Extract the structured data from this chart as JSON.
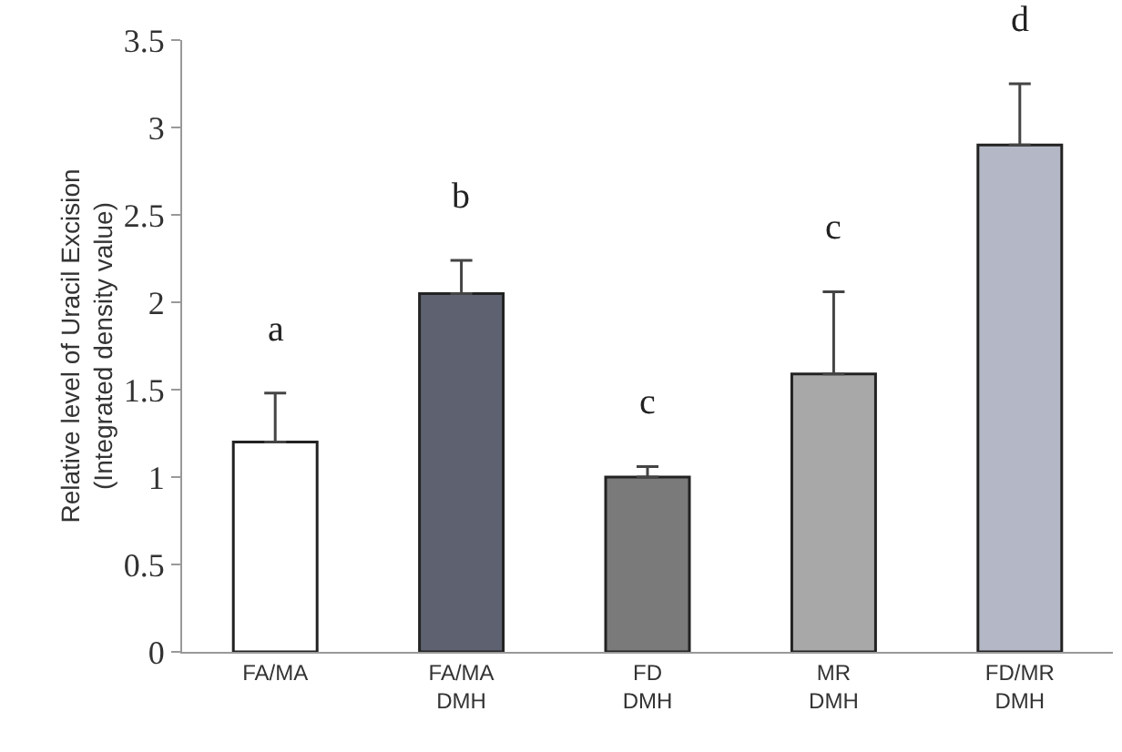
{
  "chart_data": {
    "type": "bar",
    "ylabel": "Relative level of Uracil Excision\n(Integrated density value)",
    "categories": [
      "FA/MA",
      "FA/MA\nDMH",
      "FD\nDMH",
      "MR\nDMH",
      "FD/MR\nDMH"
    ],
    "values": [
      1.2,
      2.05,
      1.0,
      1.59,
      2.9
    ],
    "colors": [
      "#ffffff",
      "#5e6270",
      "#7a7a7a",
      "#a8a8a8",
      "#b4b8c6"
    ],
    "errors": [
      [
        1.2,
        1.48
      ],
      [
        2.05,
        2.24
      ],
      [
        1.0,
        1.06
      ],
      [
        1.59,
        2.06
      ],
      [
        2.9,
        3.25
      ]
    ],
    "ylim": [
      0,
      3.5
    ],
    "yticks": [
      0,
      0.5,
      1,
      1.5,
      2,
      2.5,
      3,
      3.5
    ],
    "annotations": [
      "a",
      "b",
      "c",
      "c",
      "d"
    ]
  }
}
